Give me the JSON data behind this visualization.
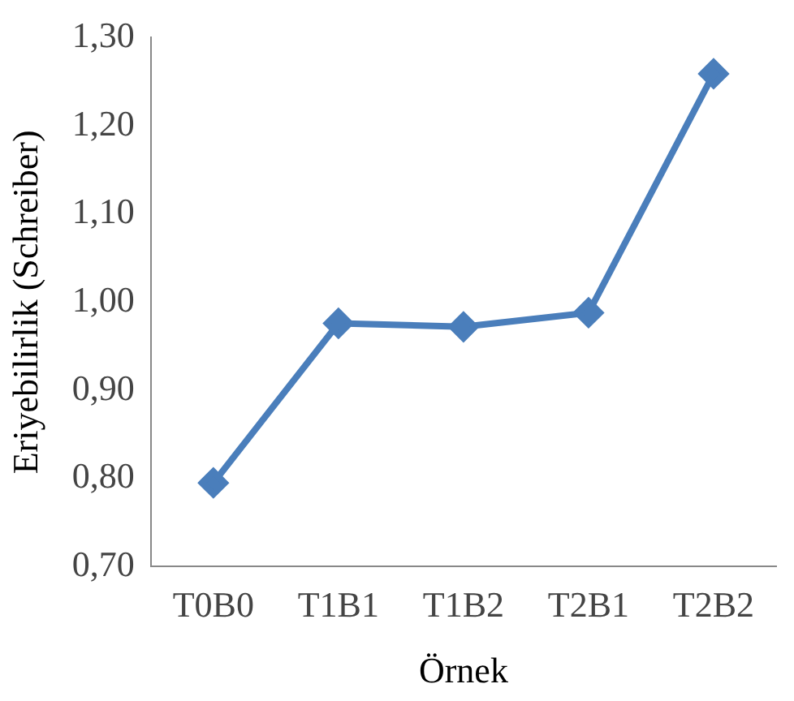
{
  "chart_data": {
    "type": "line",
    "xlabel": "Örnek",
    "ylabel": "Eriyebilirlik (Schreiber)",
    "categories": [
      "T0B0",
      "T1B1",
      "T1B2",
      "T2B1",
      "T2B2"
    ],
    "series": [
      {
        "color": "#4a7ebb",
        "values": [
          0.795,
          0.976,
          0.972,
          0.988,
          1.259
        ]
      }
    ],
    "ylim": [
      0.7,
      1.3
    ],
    "yticks": [
      {
        "value": 0.7,
        "label": "0,70"
      },
      {
        "value": 0.8,
        "label": "0,80"
      },
      {
        "value": 0.9,
        "label": "0,90"
      },
      {
        "value": 1.0,
        "label": "1,00"
      },
      {
        "value": 1.1,
        "label": "1,10"
      },
      {
        "value": 1.2,
        "label": "1,20"
      },
      {
        "value": 1.3,
        "label": "1,30"
      }
    ],
    "grid": false,
    "legend": false,
    "marker": "diamond",
    "line_style": "solid"
  }
}
